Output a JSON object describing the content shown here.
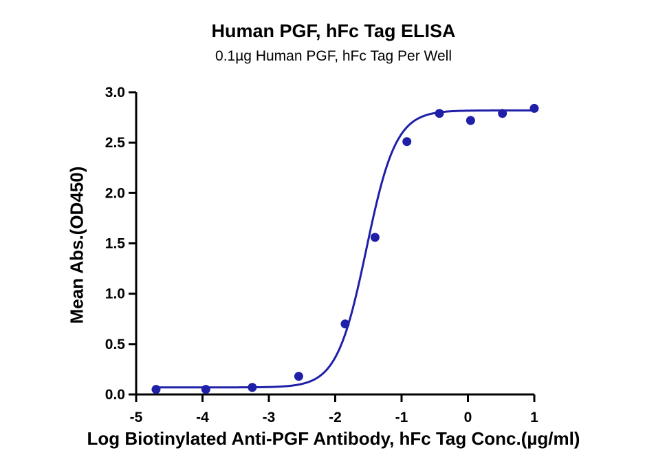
{
  "chart_data": {
    "type": "scatter",
    "title": "Human PGF, hFc Tag ELISA",
    "subtitle": "0.1µg Human PGF, hFc Tag Per Well",
    "xlabel": "Log Biotinylated Anti-PGF Antibody, hFc Tag Conc.(µg/ml)",
    "ylabel": "Mean Abs.(OD450)",
    "xlim": [
      -5,
      1
    ],
    "ylim": [
      0,
      3.0
    ],
    "x_ticks": [
      -5,
      -4,
      -3,
      -2,
      -1,
      0,
      1
    ],
    "x_tick_labels": [
      "-5",
      "-4",
      "-3",
      "-2",
      "-1",
      "0",
      "1"
    ],
    "y_ticks": [
      0,
      0.5,
      1.0,
      1.5,
      2.0,
      2.5,
      3.0
    ],
    "y_tick_labels": [
      "0.0",
      "0.5",
      "1.0",
      "1.5",
      "2.0",
      "2.5",
      "3.0"
    ],
    "grid": false,
    "legend": "none",
    "series": [
      {
        "color": "#1f1fa8",
        "x": [
          -4.7,
          -3.95,
          -3.25,
          -2.55,
          -1.85,
          -1.4,
          -0.92,
          -0.43,
          0.04,
          0.52,
          1.0
        ],
        "y": [
          0.05,
          0.05,
          0.07,
          0.18,
          0.7,
          1.56,
          2.51,
          2.79,
          2.72,
          2.79,
          2.84
        ]
      }
    ],
    "fit_curve": {
      "model": "4PL",
      "bottom": 0.07,
      "top": 2.82,
      "logEC50": -1.53,
      "hill": 1.95,
      "color": "#1f1fa8"
    }
  }
}
